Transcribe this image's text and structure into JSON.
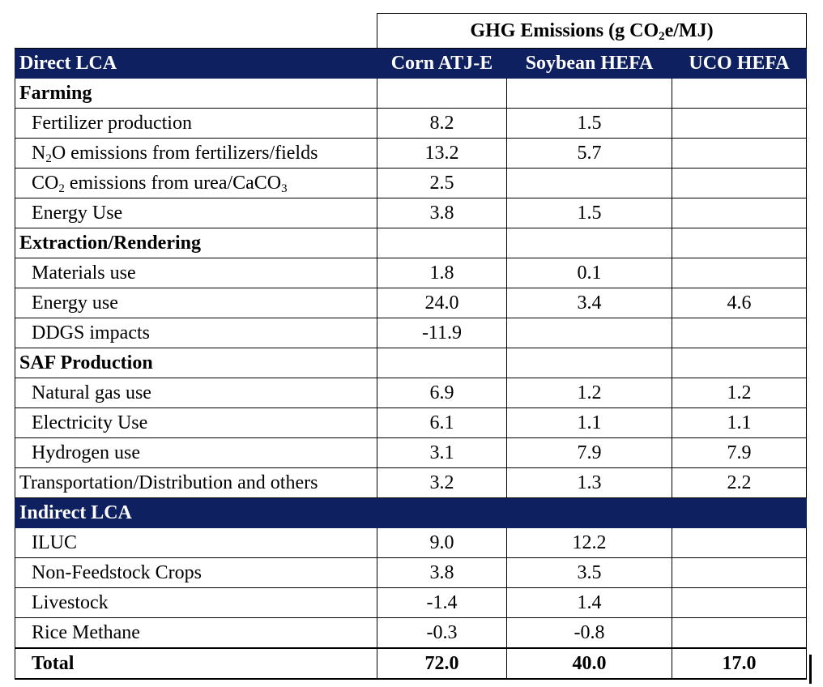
{
  "header": {
    "title": {
      "pre": "GHG Emissions (g CO",
      "sub": "2",
      "post": "e/MJ)"
    },
    "direct_label": "Direct LCA",
    "indirect_label": "Indirect LCA",
    "columns": [
      "Corn ATJ-E",
      "Soybean HEFA",
      "UCO HEFA"
    ]
  },
  "farming": {
    "label": "Farming",
    "fertilizer": {
      "label": "Fertilizer production",
      "values": [
        "8.2",
        "1.5",
        ""
      ]
    },
    "n2o": {
      "pre": "N",
      "sub": "2",
      "post": "O emissions from fertilizers/fields",
      "values": [
        "13.2",
        "5.7",
        ""
      ]
    },
    "co2": {
      "pre": "CO",
      "sub": "2",
      "mid": " emissions from urea/CaCO",
      "sub2": "3",
      "values": [
        "2.5",
        "",
        ""
      ]
    },
    "energy": {
      "label": "Energy Use",
      "values": [
        "3.8",
        "1.5",
        ""
      ]
    }
  },
  "extraction": {
    "label": "Extraction/Rendering",
    "rows": [
      {
        "label": "Materials use",
        "values": [
          "1.8",
          "0.1",
          ""
        ]
      },
      {
        "label": "Energy use",
        "values": [
          "24.0",
          "3.4",
          "4.6"
        ]
      },
      {
        "label": "DDGS impacts",
        "values": [
          "-11.9",
          "",
          ""
        ]
      }
    ]
  },
  "saf": {
    "label": "SAF Production",
    "rows": [
      {
        "label": "Natural gas use",
        "values": [
          "6.9",
          "1.2",
          "1.2"
        ]
      },
      {
        "label": "Electricity Use",
        "values": [
          "6.1",
          "1.1",
          "1.1"
        ]
      },
      {
        "label": "Hydrogen use",
        "values": [
          "3.1",
          "7.9",
          "7.9"
        ]
      }
    ]
  },
  "transport": {
    "label": "Transportation/Distribution and others",
    "values": [
      "3.2",
      "1.3",
      "2.2"
    ]
  },
  "indirect": {
    "rows": [
      {
        "label": "ILUC",
        "values": [
          "9.0",
          "12.2",
          ""
        ]
      },
      {
        "label": "Non-Feedstock Crops",
        "values": [
          "3.8",
          "3.5",
          ""
        ]
      },
      {
        "label": "Livestock",
        "values": [
          "-1.4",
          "1.4",
          ""
        ]
      },
      {
        "label": "Rice Methane",
        "values": [
          "-0.3",
          "-0.8",
          ""
        ]
      }
    ]
  },
  "total": {
    "label": "Total",
    "values": [
      "72.0",
      "40.0",
      "17.0"
    ]
  }
}
